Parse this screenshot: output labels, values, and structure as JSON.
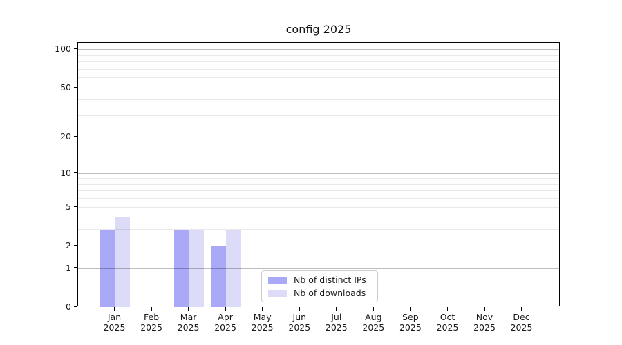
{
  "chart_data": {
    "type": "bar",
    "title": "config 2025",
    "categories": [
      "Jan 2025",
      "Feb 2025",
      "Mar 2025",
      "Apr 2025",
      "May 2025",
      "Jun 2025",
      "Jul 2025",
      "Aug 2025",
      "Sep 2025",
      "Oct 2025",
      "Nov 2025",
      "Dec 2025"
    ],
    "x_tick_labels": [
      [
        "Jan",
        "2025"
      ],
      [
        "Feb",
        "2025"
      ],
      [
        "Mar",
        "2025"
      ],
      [
        "Apr",
        "2025"
      ],
      [
        "May",
        "2025"
      ],
      [
        "Jun",
        "2025"
      ],
      [
        "Jul",
        "2025"
      ],
      [
        "Aug",
        "2025"
      ],
      [
        "Sep",
        "2025"
      ],
      [
        "Oct",
        "2025"
      ],
      [
        "Nov",
        "2025"
      ],
      [
        "Dec",
        "2025"
      ]
    ],
    "series": [
      {
        "name": "Nb of distinct IPs",
        "color": "#a9a9f7",
        "values": [
          3,
          0,
          3,
          2,
          0,
          0,
          0,
          0,
          0,
          0,
          0,
          0
        ]
      },
      {
        "name": "Nb of downloads",
        "color": "#dcdcf8",
        "values": [
          4,
          0,
          3,
          3,
          0,
          0,
          0,
          0,
          0,
          0,
          0,
          0
        ]
      }
    ],
    "yscale": "log1p",
    "ylim": [
      0,
      113
    ],
    "yticks": [
      {
        "label": "0",
        "value": 0
      },
      {
        "label": "1",
        "value": 1
      },
      {
        "label": "2",
        "value": 2
      },
      {
        "label": "5",
        "value": 5
      },
      {
        "label": "10",
        "value": 10
      },
      {
        "label": "20",
        "value": 20
      },
      {
        "label": "50",
        "value": 50
      },
      {
        "label": "100",
        "value": 100
      }
    ],
    "grid": {
      "major_values": [
        1,
        10,
        100
      ],
      "minor_values": [
        2,
        3,
        4,
        5,
        6,
        7,
        8,
        9,
        20,
        30,
        40,
        50,
        60,
        70,
        80,
        90
      ]
    },
    "legend": {
      "position": "inside-bottom-center"
    }
  }
}
